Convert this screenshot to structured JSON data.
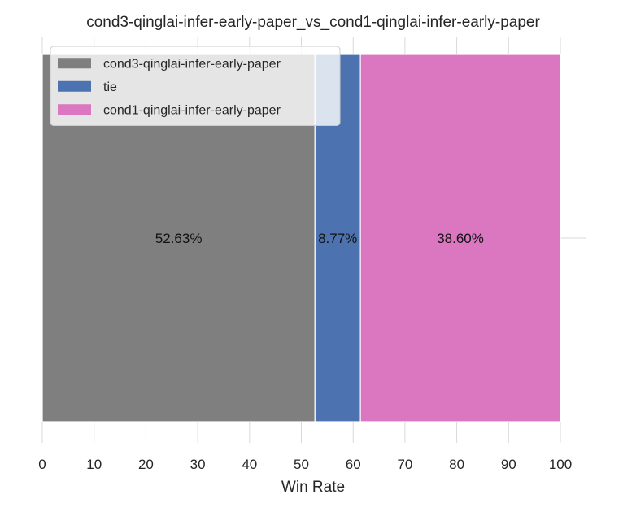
{
  "chart_data": {
    "type": "bar",
    "orientation": "horizontal-stacked",
    "title": "cond3-qinglai-infer-early-paper_vs_cond1-qinglai-infer-early-paper",
    "xlabel": "Win Rate",
    "ylabel": "",
    "xlim": [
      0,
      100
    ],
    "xticks": [
      "0",
      "10",
      "20",
      "30",
      "40",
      "50",
      "60",
      "70",
      "80",
      "90",
      "100"
    ],
    "grid": true,
    "legend_position": "top-left",
    "series": [
      {
        "name": "cond3-qinglai-infer-early-paper",
        "value": 52.63,
        "label": "52.63%",
        "color": "#7f7f7f"
      },
      {
        "name": "tie",
        "value": 8.77,
        "label": "8.77%",
        "color": "#4c72b0"
      },
      {
        "name": "cond1-qinglai-infer-early-paper",
        "value": 38.6,
        "label": "38.60%",
        "color": "#da77c0"
      }
    ]
  }
}
